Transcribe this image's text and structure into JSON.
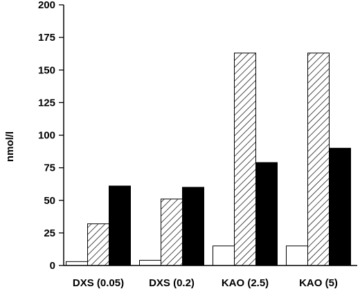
{
  "chart_data": {
    "type": "bar",
    "title": "",
    "xlabel": "",
    "ylabel": "nmol/l",
    "ylim": [
      0,
      200
    ],
    "yticks": [
      0,
      25,
      50,
      75,
      100,
      125,
      150,
      175,
      200
    ],
    "grid": false,
    "legend": "none",
    "categories": [
      "DXS (0.05)",
      "DXS (0.2)",
      "KAO (2.5)",
      "KAO (5)"
    ],
    "series": [
      {
        "values": [
          3,
          4,
          15,
          15
        ],
        "fill": "white"
      },
      {
        "values": [
          32,
          51,
          163,
          163
        ],
        "fill": "hatched"
      },
      {
        "values": [
          61,
          60,
          79,
          90
        ],
        "fill": "black"
      }
    ]
  }
}
